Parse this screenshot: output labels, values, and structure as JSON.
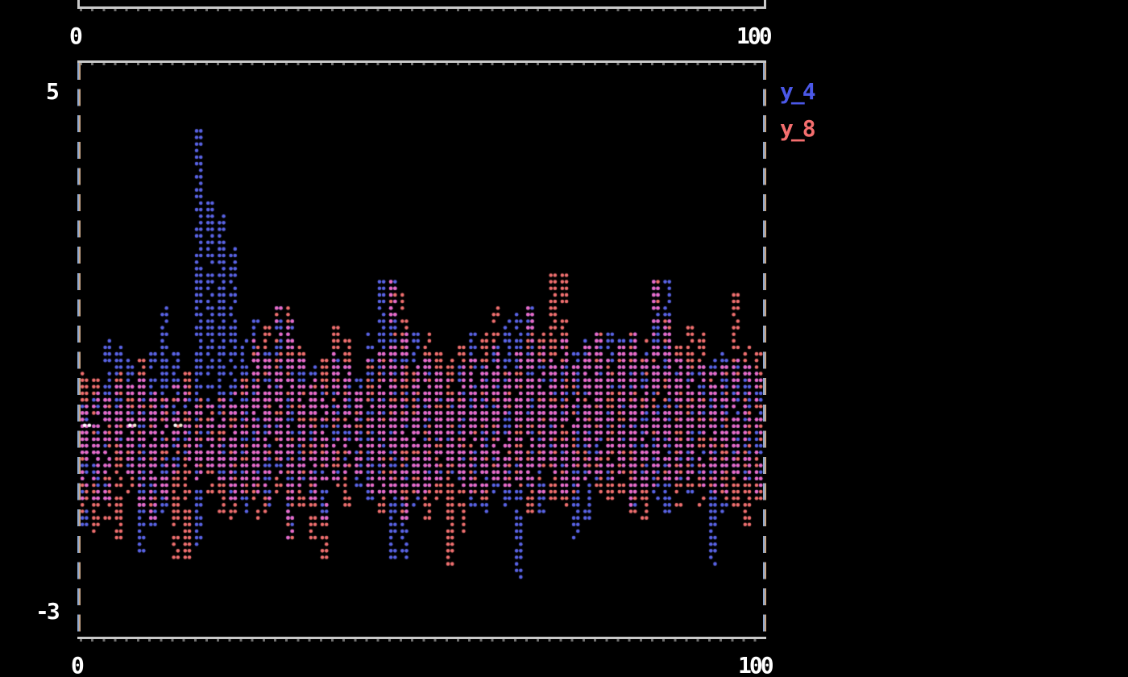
{
  "background": "#000000",
  "border_color": "#c9c9c9",
  "dash_colors": [
    "#8fa9cf",
    "#c6a586"
  ],
  "top_plot": {
    "x_tick_left": "0",
    "x_tick_right": "100"
  },
  "chart_data": {
    "type": "scatter",
    "style": "terminal-braille-dots",
    "title": "",
    "xlabel": "",
    "ylabel": "",
    "xlim": [
      0,
      100
    ],
    "ylim": [
      -3,
      5
    ],
    "x_tick_labels": [
      "0",
      "100"
    ],
    "y_tick_labels": [
      "5",
      "-3"
    ],
    "grid": false,
    "legend": {
      "position": "top-right",
      "entries": [
        {
          "label": "y_4",
          "color": "#4b58e8"
        },
        {
          "label": "y_8",
          "color": "#f56e6e"
        }
      ]
    },
    "overlap_color": "#ee6cc6",
    "marker_diameter_px": 4.6,
    "series": [
      {
        "name": "y_4",
        "color": "#5a64e6",
        "x_bin_width": 1.667,
        "columns_y_min_max": [
          [
            -1.7,
            0.2
          ],
          [
            -1.3,
            0.4
          ],
          [
            -1.3,
            1.25
          ],
          [
            -0.6,
            1.1
          ],
          [
            -0.9,
            0.9
          ],
          [
            -2.1,
            0.6
          ],
          [
            -1.7,
            1.0
          ],
          [
            -1.5,
            1.75
          ],
          [
            -0.9,
            1.0
          ],
          [
            -0.7,
            0.5
          ],
          [
            -2.1,
            4.45
          ],
          [
            -0.8,
            3.35
          ],
          [
            -1.0,
            3.1
          ],
          [
            -1.3,
            2.6
          ],
          [
            -1.5,
            1.2
          ],
          [
            -1.2,
            1.5
          ],
          [
            -1.4,
            1.0
          ],
          [
            -1.0,
            1.7
          ],
          [
            -1.9,
            1.5
          ],
          [
            -1.1,
            0.9
          ],
          [
            -1.3,
            0.8
          ],
          [
            -1.6,
            0.5
          ],
          [
            -1.0,
            1.0
          ],
          [
            -0.9,
            0.8
          ],
          [
            -1.1,
            0.6
          ],
          [
            -1.3,
            1.3
          ],
          [
            -1.2,
            2.15
          ],
          [
            -2.2,
            2.15
          ],
          [
            -2.2,
            1.3
          ],
          [
            -1.4,
            1.4
          ],
          [
            -1.2,
            0.9
          ],
          [
            -1.0,
            0.7
          ],
          [
            -0.9,
            0.6
          ],
          [
            -1.1,
            0.8
          ],
          [
            -1.4,
            1.3
          ],
          [
            -1.6,
            0.9
          ],
          [
            -1.2,
            1.1
          ],
          [
            -1.4,
            1.5
          ],
          [
            -2.55,
            1.7
          ],
          [
            -1.1,
            1.7
          ],
          [
            -1.5,
            1.1
          ],
          [
            -0.9,
            0.9
          ],
          [
            -1.2,
            1.2
          ],
          [
            -1.95,
            1.0
          ],
          [
            -1.6,
            1.2
          ],
          [
            -1.0,
            1.35
          ],
          [
            -1.0,
            1.35
          ],
          [
            -0.9,
            1.2
          ],
          [
            -1.4,
            1.3
          ],
          [
            -1.1,
            1.0
          ],
          [
            -1.3,
            2.15
          ],
          [
            -1.5,
            2.15
          ],
          [
            -1.0,
            0.9
          ],
          [
            -1.2,
            0.8
          ],
          [
            -1.1,
            0.8
          ],
          [
            -2.3,
            0.9
          ],
          [
            -1.6,
            1.0
          ],
          [
            -0.9,
            0.9
          ],
          [
            -1.0,
            0.8
          ],
          [
            -1.2,
            0.7
          ]
        ]
      },
      {
        "name": "y_8",
        "color": "#f17070",
        "x_bin_width": 1.667,
        "columns_y_min_max": [
          [
            -1.5,
            0.8
          ],
          [
            -1.9,
            0.6
          ],
          [
            -1.6,
            0.3
          ],
          [
            -1.9,
            0.75
          ],
          [
            -1.2,
            0.5
          ],
          [
            -1.4,
            0.9
          ],
          [
            -1.6,
            0.4
          ],
          [
            -1.3,
            0.3
          ],
          [
            -2.25,
            0.5
          ],
          [
            -2.25,
            0.75
          ],
          [
            -1.0,
            0.3
          ],
          [
            -1.2,
            0.2
          ],
          [
            -1.5,
            0.3
          ],
          [
            -1.6,
            0.4
          ],
          [
            -1.3,
            0.6
          ],
          [
            -1.6,
            1.2
          ],
          [
            -1.5,
            1.4
          ],
          [
            -1.2,
            1.7
          ],
          [
            -1.9,
            1.7
          ],
          [
            -1.4,
            1.1
          ],
          [
            -1.9,
            0.6
          ],
          [
            -2.2,
            0.9
          ],
          [
            -1.1,
            1.45
          ],
          [
            -1.4,
            1.25
          ],
          [
            -0.9,
            0.5
          ],
          [
            -1.2,
            0.9
          ],
          [
            -1.5,
            1.0
          ],
          [
            -1.3,
            2.1
          ],
          [
            -1.6,
            1.9
          ],
          [
            -1.2,
            0.8
          ],
          [
            -1.6,
            1.3
          ],
          [
            -1.3,
            1.0
          ],
          [
            -2.35,
            0.9
          ],
          [
            -1.8,
            1.1
          ],
          [
            -1.2,
            0.9
          ],
          [
            -1.3,
            1.35
          ],
          [
            -1.0,
            1.7
          ],
          [
            -1.1,
            0.7
          ],
          [
            -1.1,
            1.0
          ],
          [
            -1.5,
            1.7
          ],
          [
            -1.2,
            1.3
          ],
          [
            -1.3,
            2.25
          ],
          [
            -1.4,
            2.2
          ],
          [
            -1.2,
            0.8
          ],
          [
            -1.0,
            1.1
          ],
          [
            -1.2,
            1.3
          ],
          [
            -1.3,
            0.9
          ],
          [
            -1.2,
            1.1
          ],
          [
            -1.5,
            1.3
          ],
          [
            -1.6,
            1.25
          ],
          [
            -1.2,
            2.15
          ],
          [
            -1.0,
            1.5
          ],
          [
            -1.4,
            1.2
          ],
          [
            -1.1,
            1.4
          ],
          [
            -1.4,
            1.3
          ],
          [
            -1.2,
            0.7
          ],
          [
            -1.3,
            0.8
          ],
          [
            -1.5,
            1.9
          ],
          [
            -1.7,
            1.1
          ],
          [
            -1.3,
            1.0
          ]
        ]
      }
    ],
    "zero_dots": {
      "y": -0.12,
      "x": [
        0.6,
        1.3,
        7.3,
        8.0,
        14.0,
        14.8
      ],
      "colors": [
        "#ffffff",
        "#ffffff",
        "#ffffff",
        "#f2ecd0",
        "#ffffff",
        "#f2ecd0"
      ]
    }
  }
}
